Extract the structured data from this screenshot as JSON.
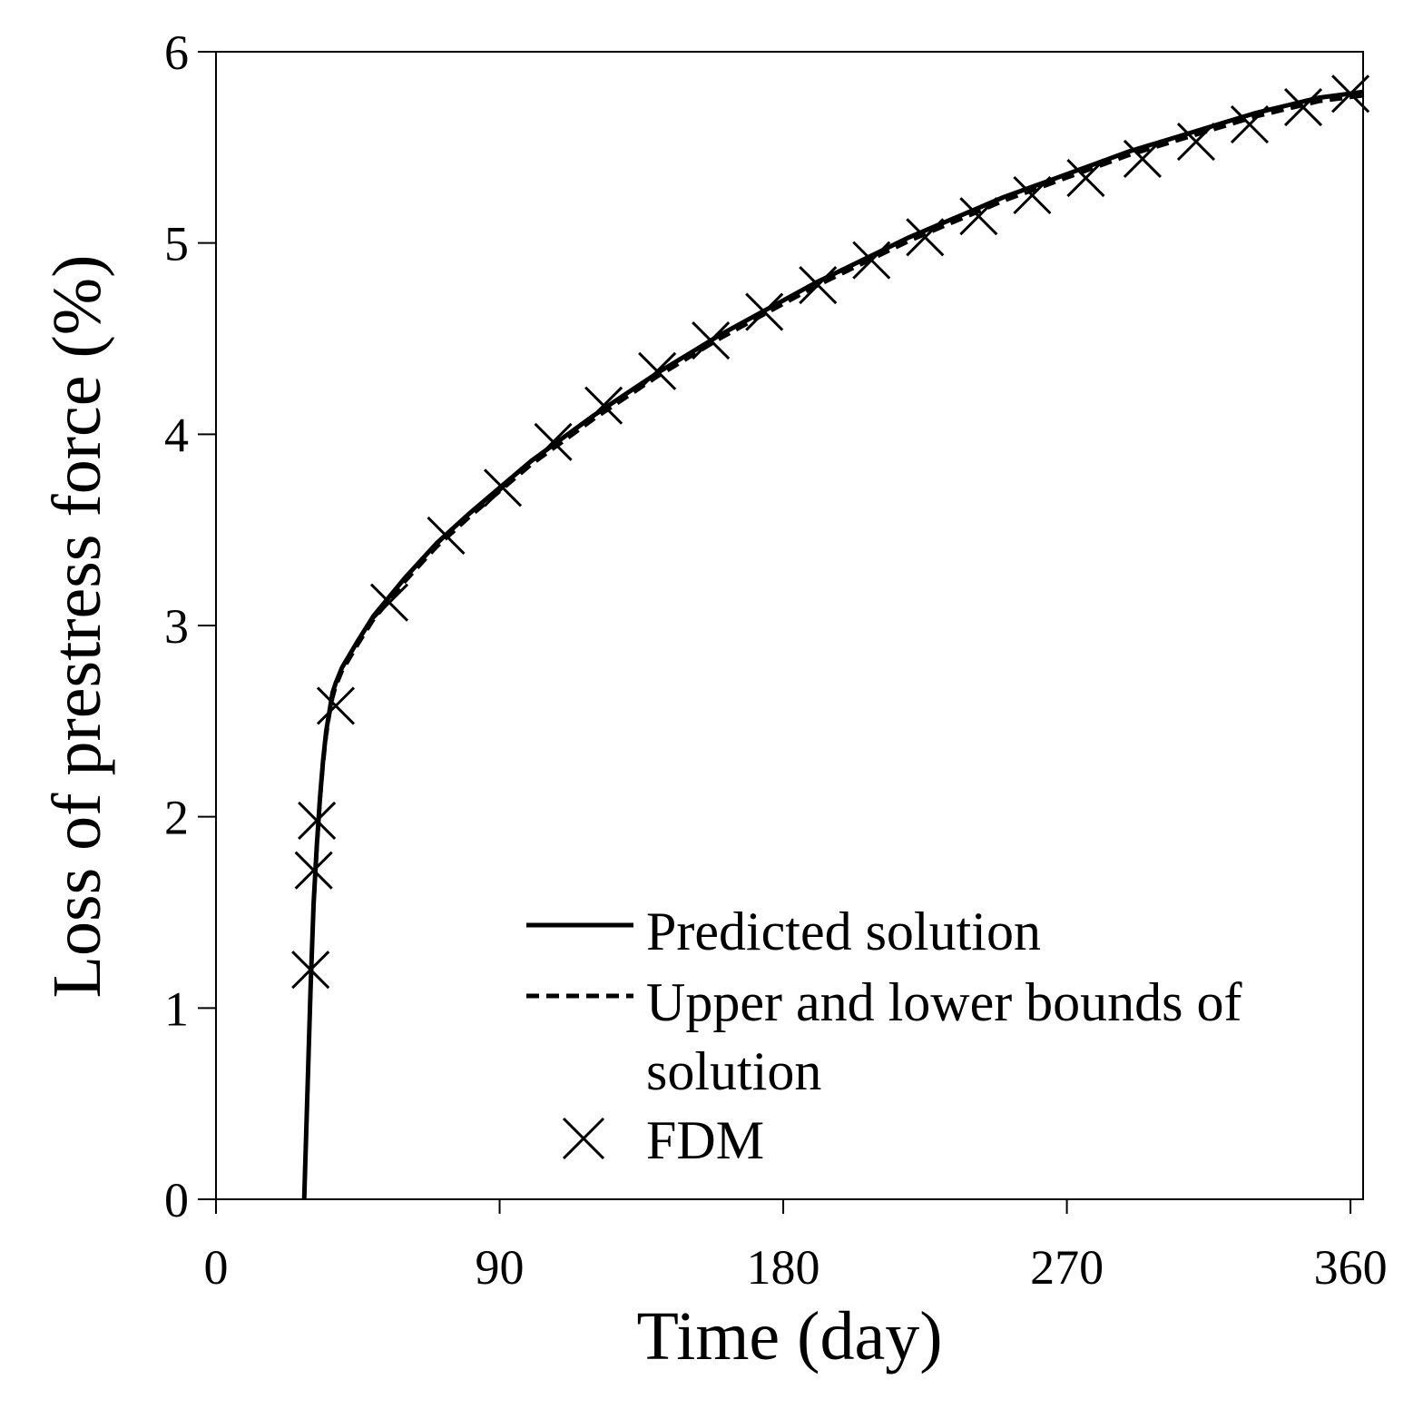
{
  "chart_data": {
    "type": "line",
    "xlabel": "Time (day)",
    "ylabel": "Loss of prestress force (%)",
    "xlim": [
      0,
      364
    ],
    "ylim": [
      0,
      6
    ],
    "xticks": [
      0,
      90,
      180,
      270,
      360
    ],
    "yticks": [
      0,
      1,
      2,
      3,
      4,
      5,
      6
    ],
    "grid": false,
    "legend_position": "bottom-right",
    "series": [
      {
        "name": "Predicted solution",
        "style": "solid",
        "x": [
          28,
          29,
          30,
          31,
          32,
          33,
          34,
          35,
          36,
          37,
          38,
          40,
          45,
          50,
          55,
          60,
          70,
          80,
          90,
          100,
          110,
          120,
          130,
          140,
          150,
          160,
          170,
          180,
          190,
          200,
          210,
          220,
          230,
          240,
          250,
          260,
          270,
          280,
          290,
          300,
          310,
          320,
          330,
          340,
          350,
          364
        ],
        "y": [
          0.0,
          0.55,
          1.1,
          1.55,
          1.85,
          2.1,
          2.3,
          2.45,
          2.55,
          2.65,
          2.7,
          2.78,
          2.92,
          3.05,
          3.15,
          3.25,
          3.43,
          3.58,
          3.72,
          3.86,
          3.98,
          4.1,
          4.21,
          4.32,
          4.42,
          4.52,
          4.61,
          4.7,
          4.79,
          4.87,
          4.95,
          5.03,
          5.1,
          5.17,
          5.24,
          5.3,
          5.36,
          5.42,
          5.48,
          5.53,
          5.58,
          5.63,
          5.68,
          5.72,
          5.76,
          5.79
        ]
      },
      {
        "name": "Upper and lower bounds of solution",
        "style": "dashed",
        "x": [
          28,
          29,
          30,
          31,
          32,
          33,
          34,
          35,
          36,
          37,
          38,
          40,
          45,
          50,
          55,
          60,
          70,
          80,
          90,
          100,
          110,
          120,
          130,
          140,
          150,
          160,
          170,
          180,
          190,
          200,
          210,
          220,
          230,
          240,
          250,
          260,
          270,
          280,
          290,
          300,
          310,
          320,
          330,
          340,
          350,
          364
        ],
        "y": [
          0.0,
          0.52,
          1.06,
          1.52,
          1.82,
          2.07,
          2.27,
          2.42,
          2.53,
          2.62,
          2.68,
          2.76,
          2.9,
          3.03,
          3.13,
          3.23,
          3.41,
          3.56,
          3.7,
          3.84,
          3.96,
          4.08,
          4.19,
          4.3,
          4.4,
          4.5,
          4.59,
          4.68,
          4.77,
          4.85,
          4.93,
          5.01,
          5.08,
          5.15,
          5.22,
          5.28,
          5.34,
          5.4,
          5.46,
          5.51,
          5.56,
          5.61,
          5.66,
          5.7,
          5.74,
          5.77
        ]
      },
      {
        "name": "FDM",
        "style": "markers",
        "marker": "x",
        "x": [
          30,
          31,
          32,
          38,
          55,
          73,
          91,
          107,
          123,
          140,
          157,
          174,
          191,
          208,
          225,
          242,
          259,
          276,
          294,
          311,
          328,
          345,
          360
        ],
        "y": [
          1.2,
          1.72,
          1.98,
          2.58,
          3.12,
          3.47,
          3.72,
          3.96,
          4.15,
          4.33,
          4.49,
          4.64,
          4.78,
          4.91,
          5.03,
          5.14,
          5.25,
          5.34,
          5.44,
          5.53,
          5.62,
          5.71,
          5.78
        ]
      }
    ],
    "legend": {
      "predicted_label": "Predicted solution",
      "bounds_label_line1": "Upper and lower bounds of",
      "bounds_label_line2": "solution",
      "fdm_label": "FDM"
    }
  }
}
